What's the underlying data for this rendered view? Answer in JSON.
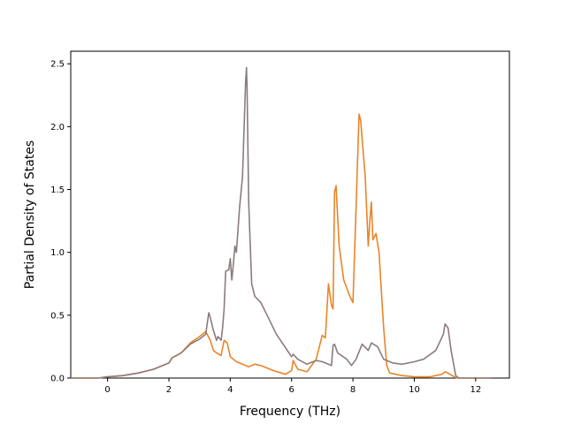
{
  "chart_data": {
    "type": "line",
    "title": "",
    "xlabel": "Frequency (THz)",
    "ylabel": "Partial Density of States",
    "xlim": [
      -1.2,
      13.1
    ],
    "ylim": [
      0,
      2.6
    ],
    "xticks": [
      0,
      2,
      4,
      6,
      8,
      10,
      12
    ],
    "xtick_labels": [
      "0",
      "2",
      "4",
      "6",
      "8",
      "10",
      "12"
    ],
    "yticks": [
      0,
      0.5,
      1.0,
      1.5,
      2.0,
      2.5
    ],
    "ytick_labels": [
      "0.0",
      "0.5",
      "1.0",
      "1.5",
      "2.0",
      "2.5"
    ],
    "grid": false,
    "series": [
      {
        "color": "#e8852a",
        "x": [
          -1.2,
          -0.3,
          0.0,
          0.5,
          1.0,
          1.5,
          2.0,
          2.1,
          2.4,
          2.7,
          3.0,
          3.2,
          3.35,
          3.45,
          3.55,
          3.7,
          3.8,
          3.9,
          4.0,
          4.2,
          4.4,
          4.6,
          4.8,
          5.0,
          5.4,
          5.8,
          6.0,
          6.05,
          6.2,
          6.5,
          6.8,
          7.0,
          7.1,
          7.2,
          7.3,
          7.35,
          7.4,
          7.45,
          7.55,
          7.7,
          7.9,
          8.0,
          8.1,
          8.2,
          8.25,
          8.3,
          8.4,
          8.5,
          8.55,
          8.6,
          8.65,
          8.75,
          8.85,
          8.9,
          9.0,
          9.1,
          9.2,
          9.6,
          10.0,
          10.5,
          10.9,
          11.0,
          11.1,
          11.3,
          11.4,
          11.6,
          12.5
        ],
        "y": [
          0.0,
          0.0,
          0.01,
          0.02,
          0.04,
          0.07,
          0.12,
          0.16,
          0.2,
          0.28,
          0.33,
          0.37,
          0.3,
          0.22,
          0.2,
          0.18,
          0.3,
          0.28,
          0.17,
          0.13,
          0.11,
          0.09,
          0.11,
          0.1,
          0.06,
          0.03,
          0.06,
          0.14,
          0.07,
          0.05,
          0.15,
          0.34,
          0.32,
          0.75,
          0.58,
          0.55,
          1.48,
          1.53,
          1.05,
          0.78,
          0.65,
          0.6,
          1.35,
          2.1,
          2.05,
          1.9,
          1.6,
          1.05,
          1.25,
          1.4,
          1.1,
          1.15,
          1.0,
          0.8,
          0.4,
          0.1,
          0.04,
          0.02,
          0.01,
          0.01,
          0.03,
          0.05,
          0.04,
          0.01,
          0.0,
          0.0,
          0.0
        ]
      },
      {
        "color": "#8c7b7c",
        "x": [
          -1.2,
          -0.3,
          0.0,
          0.5,
          1.0,
          1.5,
          2.0,
          2.1,
          2.4,
          2.7,
          3.0,
          3.2,
          3.3,
          3.35,
          3.45,
          3.55,
          3.6,
          3.7,
          3.75,
          3.8,
          3.85,
          3.95,
          4.0,
          4.05,
          4.1,
          4.15,
          4.2,
          4.3,
          4.4,
          4.5,
          4.53,
          4.55,
          4.6,
          4.7,
          4.8,
          5.0,
          5.2,
          5.5,
          6.0,
          6.05,
          6.2,
          6.5,
          6.8,
          7.0,
          7.3,
          7.35,
          7.4,
          7.5,
          7.8,
          7.95,
          8.1,
          8.3,
          8.5,
          8.6,
          8.8,
          9.0,
          9.3,
          9.6,
          10.0,
          10.3,
          10.7,
          10.95,
          11.0,
          11.1,
          11.2,
          11.35,
          11.45,
          11.6,
          12.5
        ],
        "y": [
          0.0,
          0.0,
          0.01,
          0.02,
          0.04,
          0.07,
          0.12,
          0.16,
          0.2,
          0.27,
          0.31,
          0.35,
          0.52,
          0.48,
          0.38,
          0.3,
          0.33,
          0.3,
          0.4,
          0.55,
          0.85,
          0.86,
          0.95,
          0.78,
          0.9,
          1.05,
          1.0,
          1.35,
          1.6,
          2.35,
          2.47,
          2.3,
          1.4,
          0.75,
          0.65,
          0.6,
          0.5,
          0.35,
          0.17,
          0.19,
          0.15,
          0.11,
          0.14,
          0.13,
          0.1,
          0.26,
          0.27,
          0.2,
          0.15,
          0.1,
          0.15,
          0.27,
          0.22,
          0.28,
          0.25,
          0.15,
          0.12,
          0.11,
          0.13,
          0.15,
          0.22,
          0.35,
          0.43,
          0.4,
          0.22,
          0.02,
          0.0,
          0.0,
          0.0
        ]
      }
    ]
  }
}
